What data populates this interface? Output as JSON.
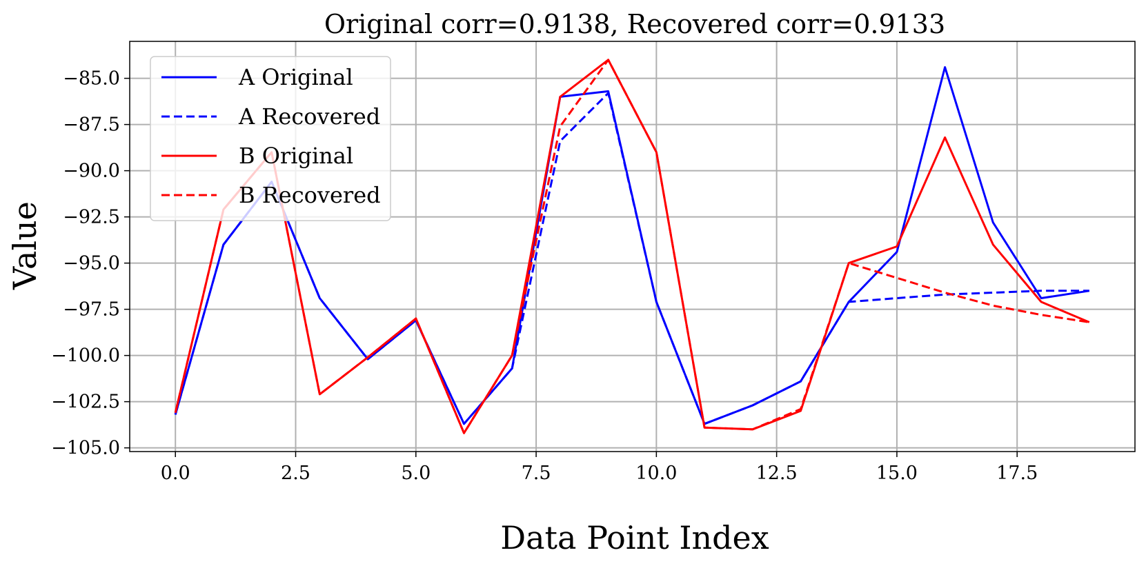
{
  "chart_data": {
    "type": "line",
    "title": "Original corr=0.9138, Recovered corr=0.9133",
    "xlabel": "Data Point Index",
    "ylabel": "Value",
    "xlim": [
      -0.95,
      19.95
    ],
    "ylim": [
      -105.2,
      -83.0
    ],
    "xticks": [
      0.0,
      2.5,
      5.0,
      7.5,
      10.0,
      12.5,
      15.0,
      17.5
    ],
    "xtick_labels": [
      "0.0",
      "2.5",
      "5.0",
      "7.5",
      "10.0",
      "12.5",
      "15.0",
      "17.5"
    ],
    "yticks": [
      -85.0,
      -87.5,
      -90.0,
      -92.5,
      -95.0,
      -97.5,
      -100.0,
      -102.5,
      -105.0
    ],
    "ytick_labels": [
      "−85.0",
      "−87.5",
      "−90.0",
      "−92.5",
      "−95.0",
      "−97.5",
      "−100.0",
      "−102.5",
      "−105.0"
    ],
    "grid": true,
    "legend_position": "top-left",
    "x": [
      0,
      1,
      2,
      3,
      4,
      5,
      6,
      7,
      8,
      9,
      10,
      11,
      12,
      13,
      14,
      15,
      16,
      17,
      18,
      19
    ],
    "series": [
      {
        "name": "A Original",
        "color": "#0000ff",
        "dash": "solid",
        "values": [
          -103.2,
          -94.0,
          -90.6,
          -96.9,
          -100.2,
          -98.1,
          -103.7,
          -100.7,
          -86.0,
          -85.7,
          -97.1,
          -103.7,
          -102.7,
          -101.4,
          -97.1,
          -94.4,
          -84.4,
          -92.8,
          -96.9,
          -96.5
        ]
      },
      {
        "name": "A Recovered",
        "color": "#0000ff",
        "dash": "dashed",
        "values": [
          -103.2,
          -94.0,
          -90.6,
          -96.9,
          -100.2,
          -98.1,
          -103.7,
          -100.7,
          -88.4,
          -85.8,
          -97.1,
          -103.7,
          -102.7,
          -101.4,
          -97.1,
          -96.9,
          -96.7,
          -96.6,
          -96.5,
          -96.5
        ]
      },
      {
        "name": "B Original",
        "color": "#ff0000",
        "dash": "solid",
        "values": [
          -103.1,
          -92.1,
          -89.0,
          -102.1,
          -100.1,
          -98.0,
          -104.2,
          -100.0,
          -86.0,
          -84.0,
          -89.0,
          -103.9,
          -104.0,
          -103.0,
          -95.0,
          -94.1,
          -88.2,
          -94.0,
          -97.1,
          -98.2
        ]
      },
      {
        "name": "B Recovered",
        "color": "#ff0000",
        "dash": "dashed",
        "values": [
          -103.1,
          -92.1,
          -89.0,
          -102.1,
          -100.1,
          -98.0,
          -104.2,
          -100.0,
          -87.6,
          -84.0,
          -89.0,
          -103.9,
          -104.0,
          -102.9,
          -95.0,
          -95.8,
          -96.6,
          -97.3,
          -97.8,
          -98.2
        ]
      }
    ]
  }
}
